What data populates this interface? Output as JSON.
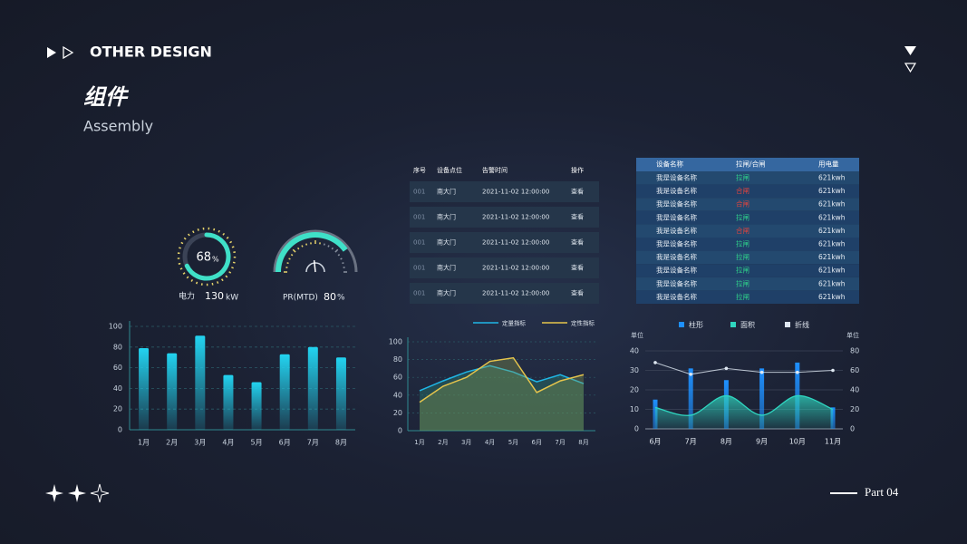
{
  "header": {
    "brand": "OTHER DESIGN",
    "title": "组件",
    "subtitle": "Assembly",
    "part": "Part 04"
  },
  "gauges": [
    {
      "value": 68,
      "unit": "%",
      "label": "电力",
      "reading": 130,
      "reading_unit": "kW",
      "color": "#3fe0c8"
    },
    {
      "label": "PR(MTD)",
      "value": 80,
      "unit": "%",
      "color": "#3fe0c8"
    }
  ],
  "alarm_table": {
    "headers": [
      "序号",
      "设备点位",
      "告警时间",
      "操作"
    ],
    "rows": [
      [
        "001",
        "南大门",
        "2021-11-02 12:00:00",
        "查看"
      ],
      [
        "001",
        "南大门",
        "2021-11-02 12:00:00",
        "查看"
      ],
      [
        "001",
        "南大门",
        "2021-11-02 12:00:00",
        "查看"
      ],
      [
        "001",
        "南大门",
        "2021-11-02 12:00:00",
        "查看"
      ],
      [
        "001",
        "南大门",
        "2021-11-02 12:00:00",
        "查看"
      ]
    ]
  },
  "device_table": {
    "headers": [
      "设备名称",
      "拉闸/合闸",
      "用电量"
    ],
    "status_colors": {
      "拉闸": "#2fd08a",
      "合闸": "#e0443e"
    },
    "rows": [
      [
        "我是设备名称",
        "拉闸",
        "621kwh"
      ],
      [
        "我是设备名称",
        "合闸",
        "621kwh"
      ],
      [
        "我是设备名称",
        "合闸",
        "621kwh"
      ],
      [
        "我是设备名称",
        "拉闸",
        "621kwh"
      ],
      [
        "我是设备名称",
        "合闸",
        "621kwh"
      ],
      [
        "我是设备名称",
        "拉闸",
        "621kwh"
      ],
      [
        "我是设备名称",
        "拉闸",
        "621kwh"
      ],
      [
        "我是设备名称",
        "拉闸",
        "621kwh"
      ],
      [
        "我是设备名称",
        "拉闸",
        "621kwh"
      ],
      [
        "我是设备名称",
        "拉闸",
        "621kwh"
      ]
    ]
  },
  "chart_data": [
    {
      "type": "bar",
      "categories": [
        "1月",
        "2月",
        "3月",
        "4月",
        "5月",
        "6月",
        "7月",
        "8月"
      ],
      "values": [
        79,
        74,
        91,
        53,
        46,
        73,
        80,
        70
      ],
      "color": "#22d3f0",
      "ylim": [
        0,
        100
      ],
      "yticks": [
        0,
        20,
        40,
        60,
        80,
        100
      ],
      "grid": true
    },
    {
      "type": "area",
      "categories": [
        "1月",
        "2月",
        "3月",
        "4月",
        "5月",
        "6月",
        "7月",
        "8月"
      ],
      "series": [
        {
          "name": "定量指标",
          "color": "#1fb6e6",
          "values": [
            45,
            56,
            66,
            73,
            66,
            55,
            63,
            53
          ]
        },
        {
          "name": "定性指标",
          "color": "#e6c54c",
          "values": [
            32,
            50,
            60,
            78,
            82,
            43,
            56,
            63
          ]
        }
      ],
      "ylim": [
        0,
        100
      ],
      "yticks": [
        0,
        20,
        40,
        60,
        80,
        100
      ],
      "grid": true
    },
    {
      "type": "combo",
      "categories": [
        "6月",
        "7月",
        "8月",
        "9月",
        "10月",
        "11月"
      ],
      "ylabel": "单位",
      "y2label": "单位",
      "series": [
        {
          "name": "柱形",
          "type": "bar",
          "color": "#1e90ff",
          "values": [
            15,
            31,
            25,
            31,
            34,
            11
          ]
        },
        {
          "name": "面积",
          "type": "area",
          "color": "#2fd6c0",
          "values": [
            11,
            7,
            17,
            7,
            17,
            10
          ]
        },
        {
          "name": "折线",
          "type": "line",
          "color": "#dfe8f2",
          "axis": "y2",
          "values": [
            68,
            56,
            62,
            58,
            58,
            60
          ]
        }
      ],
      "ylim": [
        0,
        40
      ],
      "yticks": [
        0,
        10,
        20,
        30,
        40
      ],
      "y2lim": [
        0,
        80
      ],
      "y2ticks": [
        0,
        20,
        40,
        60,
        80
      ],
      "grid": true
    }
  ]
}
